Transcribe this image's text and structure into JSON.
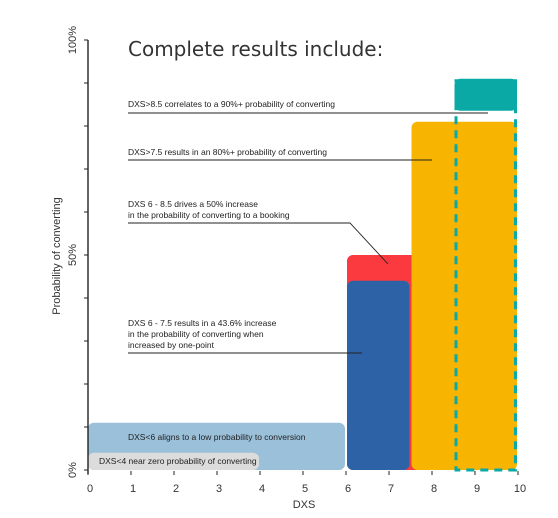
{
  "chart_data": {
    "type": "bar",
    "title": "Complete results include:",
    "xlabel": "DXS",
    "ylabel": "Probability of converting",
    "xlim": [
      0,
      10
    ],
    "ylim": [
      0,
      100
    ],
    "x_ticks": [
      "0",
      "1",
      "2",
      "3",
      "4",
      "5",
      "6",
      "7",
      "8",
      "9",
      "10"
    ],
    "y_ticks": [
      {
        "value": 0,
        "label": "0%"
      },
      {
        "value": 50,
        "label": "50%"
      },
      {
        "value": 100,
        "label": "100%"
      }
    ],
    "grid": false,
    "legend": "none",
    "bars": [
      {
        "id": "near-zero",
        "x_start": 0,
        "x_end": 4,
        "height": 4,
        "color": "#dcdcdc"
      },
      {
        "id": "low",
        "x_start": 0,
        "x_end": 6,
        "height": 11,
        "color": "#9bc0da"
      },
      {
        "id": "dxs-6-8-5",
        "x_start": 6,
        "x_end": 8.5,
        "height": 50,
        "color": "#fa3a3e"
      },
      {
        "id": "dxs-6-7-5",
        "x_start": 6,
        "x_end": 7.5,
        "height": 44,
        "color": "#2e62a7"
      },
      {
        "id": "dxs-gt-7-5",
        "x_start": 7.5,
        "x_end": 10,
        "height": 81,
        "color": "#f7b400"
      },
      {
        "id": "dxs-gt-8-5",
        "x_start": 8.5,
        "x_end": 10,
        "height": 91,
        "color": "#0aa9a6",
        "dashed": true
      }
    ],
    "annotations": [
      {
        "text": "DXS>8.5 correlates to a 90%+ probability of converting",
        "target": "dxs-gt-8-5"
      },
      {
        "text": "DXS>7.5 results in an 80%+ probability of converting",
        "target": "dxs-gt-7-5"
      },
      {
        "text": "DXS 6 - 8.5 drives a 50% increase",
        "text2": "in the probability of converting to a booking",
        "target": "dxs-6-8-5"
      },
      {
        "text": "DXS 6 - 7.5 results in a 43.6% increase",
        "text2": "in the probability of converting when",
        "text3": "increased by one-point",
        "target": "dxs-6-7-5"
      },
      {
        "text": "DXS<6 aligns to a low probability to conversion",
        "target": "low"
      },
      {
        "text": "DXS<4 near zero probability of converting",
        "target": "near-zero"
      }
    ]
  }
}
